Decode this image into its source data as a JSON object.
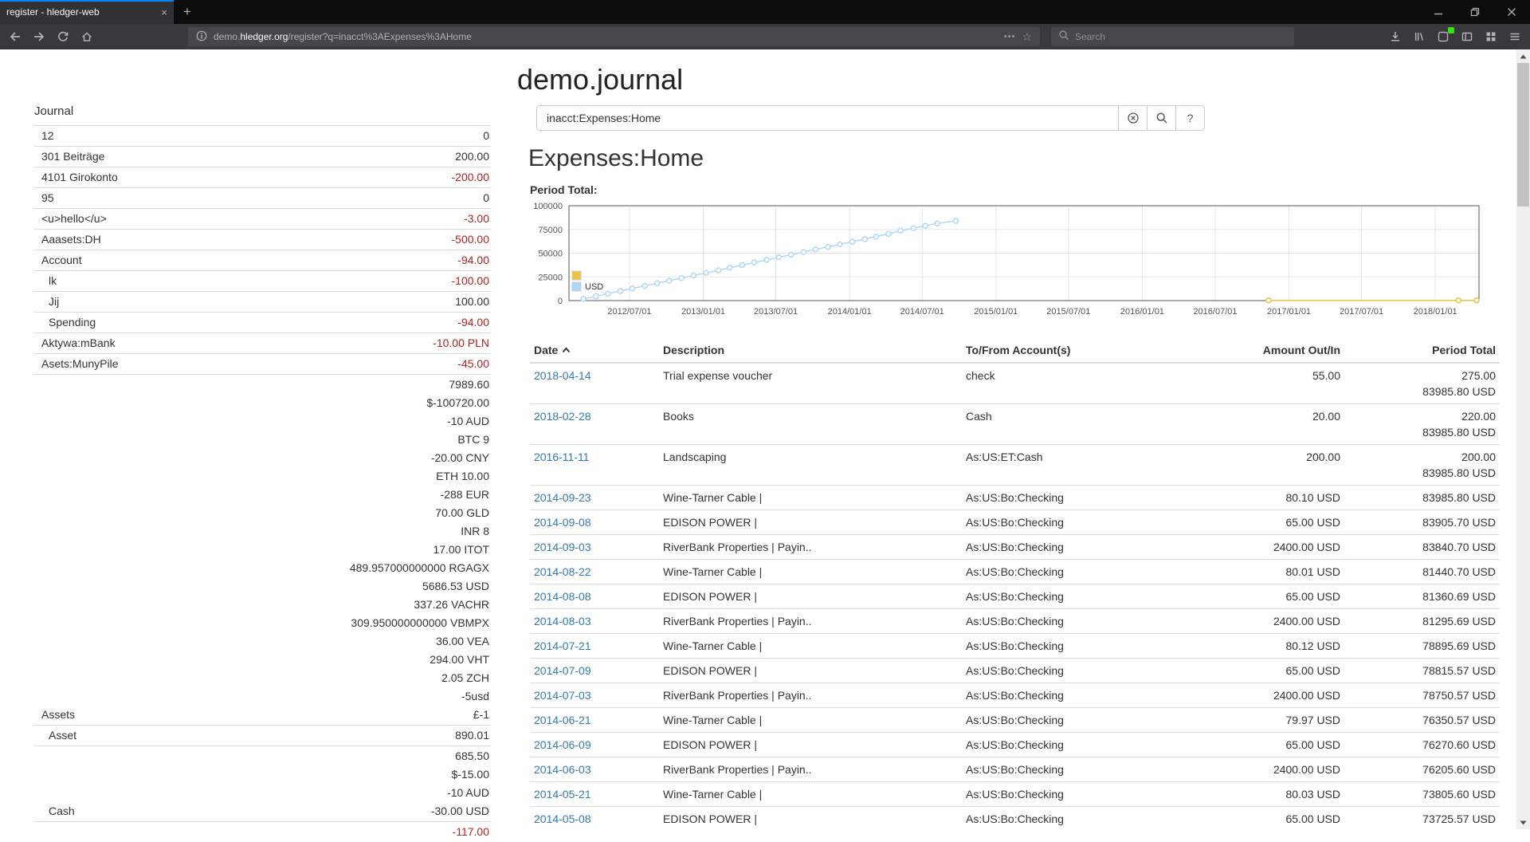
{
  "colors": {
    "link_blue": "#337ab7",
    "negative_red": "#b22222",
    "tab_accent_blue": "#0a84ff",
    "chart_series_yellow": "#edc240",
    "chart_series_blue": "#afd8f8"
  },
  "browser": {
    "tab": {
      "title": "register - hledger-web",
      "close_glyph": "×"
    },
    "new_tab_glyph": "+",
    "url": {
      "subdomain": "demo.",
      "domain": "hledger.org",
      "path": "/register?q=inacct%3AExpenses%3AHome"
    },
    "page_actions_glyph": "•••",
    "bookmark_star_glyph": "☆",
    "search_placeholder": "Search"
  },
  "page": {
    "title": "demo.journal",
    "sidebar_heading": "Journal",
    "search_query": "inacct:Expenses:Home",
    "help_button_label": "?",
    "account_heading": "Expenses:Home",
    "chart_label": "Period Total:"
  },
  "sidebar_accounts": [
    {
      "name": "12",
      "depth": 1,
      "negative": false,
      "balances": [
        "0"
      ]
    },
    {
      "name": "301 Beiträge",
      "depth": 1,
      "negative": false,
      "balances": [
        "200.00"
      ]
    },
    {
      "name": "4101 Girokonto",
      "depth": 1,
      "negative": true,
      "balances": [
        "-200.00"
      ]
    },
    {
      "name": "95",
      "depth": 1,
      "negative": false,
      "balances": [
        "0"
      ]
    },
    {
      "name": "<u>hello</u>",
      "depth": 1,
      "negative": true,
      "balances": [
        "-3.00"
      ]
    },
    {
      "name": "Aaasets:DH",
      "depth": 1,
      "negative": true,
      "balances": [
        "-500.00"
      ]
    },
    {
      "name": "Account",
      "depth": 1,
      "negative": true,
      "balances": [
        "-94.00"
      ]
    },
    {
      "name": "lk",
      "depth": 2,
      "negative": true,
      "balances": [
        "-100.00"
      ]
    },
    {
      "name": "Jij",
      "depth": 2,
      "negative": false,
      "balances": [
        "100.00"
      ]
    },
    {
      "name": "Spending",
      "depth": 2,
      "negative": true,
      "balances": [
        "-94.00"
      ]
    },
    {
      "name": "Aktywa:mBank",
      "depth": 1,
      "negative": true,
      "balances": [
        "-10.00 PLN"
      ]
    },
    {
      "name": "Asets:MunyPile",
      "depth": 1,
      "negative": true,
      "balances": [
        "-45.00"
      ]
    },
    {
      "name": "Assets",
      "depth": 1,
      "negative": false,
      "balances": [
        "7989.60",
        "$-100720.00",
        "-10 AUD",
        "BTC 9",
        "-20.00 CNY",
        "ETH 10.00",
        "-288 EUR",
        "70.00 GLD",
        "INR 8",
        "17.00 ITOT",
        "489.957000000000 RGAGX",
        "5686.53 USD",
        "337.26 VACHR",
        "309.950000000000 VBMPX",
        "36.00 VEA",
        "294.00 VHT",
        "2.05 ZCH",
        "-5usd",
        "£-1"
      ]
    },
    {
      "name": "Asset",
      "depth": 2,
      "negative": false,
      "balances": [
        "890.01"
      ]
    },
    {
      "name": "Cash",
      "depth": 2,
      "negative": false,
      "balances": [
        "685.50",
        "$-15.00",
        "-10 AUD",
        "-30.00 USD"
      ]
    },
    {
      "name": "",
      "depth": 2,
      "negative": true,
      "balances": [
        "-117.00"
      ]
    }
  ],
  "register_table": {
    "headers": [
      {
        "label": "Date",
        "align": "left",
        "sort": "asc"
      },
      {
        "label": "Description",
        "align": "left"
      },
      {
        "label": "To/From Account(s)",
        "align": "left"
      },
      {
        "label": "Amount Out/In",
        "align": "right"
      },
      {
        "label": "Period Total",
        "align": "right"
      }
    ],
    "rows": [
      {
        "date": "2018-04-14",
        "description": "Trial expense voucher",
        "account": "check",
        "amount": "55.00",
        "period": [
          "275.00",
          "83985.80 USD"
        ]
      },
      {
        "date": "2018-02-28",
        "description": "Books",
        "account": "Cash",
        "amount": "20.00",
        "period": [
          "220.00",
          "83985.80 USD"
        ]
      },
      {
        "date": "2016-11-11",
        "description": "Landscaping",
        "account": "As:US:ET:Cash",
        "amount": "200.00",
        "period": [
          "200.00",
          "83985.80 USD"
        ]
      },
      {
        "date": "2014-09-23",
        "description": "Wine-Tarner Cable |",
        "account": "As:US:Bo:Checking",
        "amount": "80.10 USD",
        "period": [
          "83985.80 USD"
        ]
      },
      {
        "date": "2014-09-08",
        "description": "EDISON POWER |",
        "account": "As:US:Bo:Checking",
        "amount": "65.00 USD",
        "period": [
          "83905.70 USD"
        ]
      },
      {
        "date": "2014-09-03",
        "description": "RiverBank Properties | Payin..",
        "account": "As:US:Bo:Checking",
        "amount": "2400.00 USD",
        "period": [
          "83840.70 USD"
        ]
      },
      {
        "date": "2014-08-22",
        "description": "Wine-Tarner Cable |",
        "account": "As:US:Bo:Checking",
        "amount": "80.01 USD",
        "period": [
          "81440.70 USD"
        ]
      },
      {
        "date": "2014-08-08",
        "description": "EDISON POWER |",
        "account": "As:US:Bo:Checking",
        "amount": "65.00 USD",
        "period": [
          "81360.69 USD"
        ]
      },
      {
        "date": "2014-08-03",
        "description": "RiverBank Properties | Payin..",
        "account": "As:US:Bo:Checking",
        "amount": "2400.00 USD",
        "period": [
          "81295.69 USD"
        ]
      },
      {
        "date": "2014-07-21",
        "description": "Wine-Tarner Cable |",
        "account": "As:US:Bo:Checking",
        "amount": "80.12 USD",
        "period": [
          "78895.69 USD"
        ]
      },
      {
        "date": "2014-07-09",
        "description": "EDISON POWER |",
        "account": "As:US:Bo:Checking",
        "amount": "65.00 USD",
        "period": [
          "78815.57 USD"
        ]
      },
      {
        "date": "2014-07-03",
        "description": "RiverBank Properties | Payin..",
        "account": "As:US:Bo:Checking",
        "amount": "2400.00 USD",
        "period": [
          "78750.57 USD"
        ]
      },
      {
        "date": "2014-06-21",
        "description": "Wine-Tarner Cable |",
        "account": "As:US:Bo:Checking",
        "amount": "79.97 USD",
        "period": [
          "76350.57 USD"
        ]
      },
      {
        "date": "2014-06-09",
        "description": "EDISON POWER |",
        "account": "As:US:Bo:Checking",
        "amount": "65.00 USD",
        "period": [
          "76270.60 USD"
        ]
      },
      {
        "date": "2014-06-03",
        "description": "RiverBank Properties | Payin..",
        "account": "As:US:Bo:Checking",
        "amount": "2400.00 USD",
        "period": [
          "76205.60 USD"
        ]
      },
      {
        "date": "2014-05-21",
        "description": "Wine-Tarner Cable |",
        "account": "As:US:Bo:Checking",
        "amount": "80.03 USD",
        "period": [
          "73805.60 USD"
        ]
      },
      {
        "date": "2014-05-08",
        "description": "EDISON POWER |",
        "account": "As:US:Bo:Checking",
        "amount": "65.00 USD",
        "period": [
          "73725.57 USD"
        ]
      }
    ]
  },
  "chart_data": {
    "type": "line",
    "title": "Period Total:",
    "xlim": [
      "2012-02-01",
      "2018-04-20"
    ],
    "ylim": [
      0,
      100000
    ],
    "x_ticks": [
      "2012/07/01",
      "2013/01/01",
      "2013/07/01",
      "2014/01/01",
      "2014/07/01",
      "2015/01/01",
      "2015/07/01",
      "2016/01/01",
      "2016/07/01",
      "2017/01/01",
      "2017/07/01",
      "2018/01/01"
    ],
    "y_ticks": [
      0,
      25000,
      50000,
      75000,
      100000
    ],
    "grid": true,
    "legend_position": "inside-left",
    "legend": [
      {
        "label": "",
        "color": "#edc240"
      },
      {
        "label": "USD",
        "color": "#afd8f8"
      }
    ],
    "series": [
      {
        "name": "",
        "color": "#edc240",
        "points": [
          [
            "2016-11-11",
            200
          ],
          [
            "2018-02-28",
            220
          ],
          [
            "2018-04-14",
            275
          ]
        ]
      },
      {
        "name": "USD",
        "color": "#afd8f8",
        "points": [
          [
            "2012-03-08",
            1836
          ],
          [
            "2012-04-08",
            4574
          ],
          [
            "2012-05-08",
            7313
          ],
          [
            "2012-06-08",
            10051
          ],
          [
            "2012-07-08",
            12789
          ],
          [
            "2012-08-08",
            15528
          ],
          [
            "2012-09-08",
            18266
          ],
          [
            "2012-10-08",
            21004
          ],
          [
            "2012-11-08",
            23743
          ],
          [
            "2012-12-08",
            26481
          ],
          [
            "2013-01-08",
            29219
          ],
          [
            "2013-02-08",
            31958
          ],
          [
            "2013-03-08",
            34696
          ],
          [
            "2013-04-08",
            37434
          ],
          [
            "2013-05-08",
            40173
          ],
          [
            "2013-06-08",
            42911
          ],
          [
            "2013-07-08",
            45649
          ],
          [
            "2013-08-08",
            48388
          ],
          [
            "2013-09-08",
            51126
          ],
          [
            "2013-10-08",
            53864
          ],
          [
            "2013-11-08",
            56603
          ],
          [
            "2013-12-08",
            59341
          ],
          [
            "2014-01-08",
            62079
          ],
          [
            "2014-02-08",
            64818
          ],
          [
            "2014-03-08",
            67556
          ],
          [
            "2014-04-08",
            70294
          ],
          [
            "2014-05-08",
            73725.57
          ],
          [
            "2014-06-09",
            76270.6
          ],
          [
            "2014-07-09",
            78815.57
          ],
          [
            "2014-08-08",
            81360.69
          ],
          [
            "2014-09-23",
            83985.8
          ]
        ]
      }
    ]
  }
}
